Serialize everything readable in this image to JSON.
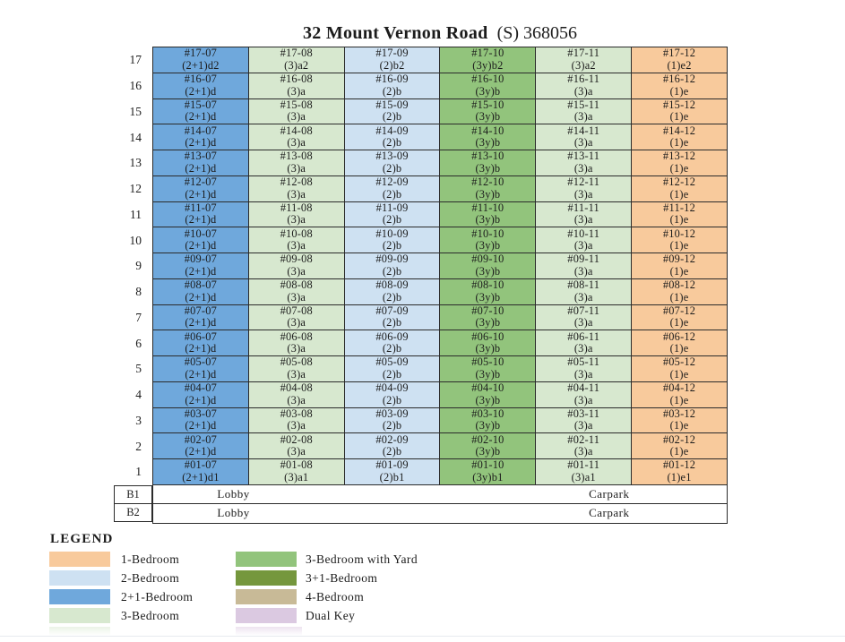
{
  "title": {
    "building": "32 Mount Vernon Road",
    "postal": "(S) 368056"
  },
  "palette": {
    "1-Bedroom": "#F8CA9C",
    "2-Bedroom": "#CEE1F2",
    "2+1-Bedroom": "#6FA8DC",
    "3-Bedroom": "#D7E8CF",
    "3-Bedroom with Yard": "#92C47C",
    "3+1-Bedroom": "#75973D",
    "4-Bedroom": "#C8BA97",
    "Dual Key": "#DBC9E1"
  },
  "building": {
    "stacks": [
      {
        "no": "07",
        "category": "2+1-Bedroom"
      },
      {
        "no": "08",
        "category": "3-Bedroom"
      },
      {
        "no": "09",
        "category": "2-Bedroom"
      },
      {
        "no": "10",
        "category": "3-Bedroom with Yard"
      },
      {
        "no": "11",
        "category": "3-Bedroom"
      },
      {
        "no": "12",
        "category": "1-Bedroom"
      }
    ],
    "floors": [
      {
        "label": "17",
        "units": [
          {
            "id": "#17-07",
            "type": "(2+1)d2"
          },
          {
            "id": "#17-08",
            "type": "(3)a2"
          },
          {
            "id": "#17-09",
            "type": "(2)b2"
          },
          {
            "id": "#17-10",
            "type": "(3y)b2"
          },
          {
            "id": "#17-11",
            "type": "(3)a2"
          },
          {
            "id": "#17-12",
            "type": "(1)e2"
          }
        ]
      },
      {
        "label": "16",
        "units": [
          {
            "id": "#16-07",
            "type": "(2+1)d"
          },
          {
            "id": "#16-08",
            "type": "(3)a"
          },
          {
            "id": "#16-09",
            "type": "(2)b"
          },
          {
            "id": "#16-10",
            "type": "(3y)b"
          },
          {
            "id": "#16-11",
            "type": "(3)a"
          },
          {
            "id": "#16-12",
            "type": "(1)e"
          }
        ]
      },
      {
        "label": "15",
        "units": [
          {
            "id": "#15-07",
            "type": "(2+1)d"
          },
          {
            "id": "#15-08",
            "type": "(3)a"
          },
          {
            "id": "#15-09",
            "type": "(2)b"
          },
          {
            "id": "#15-10",
            "type": "(3y)b"
          },
          {
            "id": "#15-11",
            "type": "(3)a"
          },
          {
            "id": "#15-12",
            "type": "(1)e"
          }
        ]
      },
      {
        "label": "14",
        "units": [
          {
            "id": "#14-07",
            "type": "(2+1)d"
          },
          {
            "id": "#14-08",
            "type": "(3)a"
          },
          {
            "id": "#14-09",
            "type": "(2)b"
          },
          {
            "id": "#14-10",
            "type": "(3y)b"
          },
          {
            "id": "#14-11",
            "type": "(3)a"
          },
          {
            "id": "#14-12",
            "type": "(1)e"
          }
        ]
      },
      {
        "label": "13",
        "units": [
          {
            "id": "#13-07",
            "type": "(2+1)d"
          },
          {
            "id": "#13-08",
            "type": "(3)a"
          },
          {
            "id": "#13-09",
            "type": "(2)b"
          },
          {
            "id": "#13-10",
            "type": "(3y)b"
          },
          {
            "id": "#13-11",
            "type": "(3)a"
          },
          {
            "id": "#13-12",
            "type": "(1)e"
          }
        ]
      },
      {
        "label": "12",
        "units": [
          {
            "id": "#12-07",
            "type": "(2+1)d"
          },
          {
            "id": "#12-08",
            "type": "(3)a"
          },
          {
            "id": "#12-09",
            "type": "(2)b"
          },
          {
            "id": "#12-10",
            "type": "(3y)b"
          },
          {
            "id": "#12-11",
            "type": "(3)a"
          },
          {
            "id": "#12-12",
            "type": "(1)e"
          }
        ]
      },
      {
        "label": "11",
        "units": [
          {
            "id": "#11-07",
            "type": "(2+1)d"
          },
          {
            "id": "#11-08",
            "type": "(3)a"
          },
          {
            "id": "#11-09",
            "type": "(2)b"
          },
          {
            "id": "#11-10",
            "type": "(3y)b"
          },
          {
            "id": "#11-11",
            "type": "(3)a"
          },
          {
            "id": "#11-12",
            "type": "(1)e"
          }
        ]
      },
      {
        "label": "10",
        "units": [
          {
            "id": "#10-07",
            "type": "(2+1)d"
          },
          {
            "id": "#10-08",
            "type": "(3)a"
          },
          {
            "id": "#10-09",
            "type": "(2)b"
          },
          {
            "id": "#10-10",
            "type": "(3y)b"
          },
          {
            "id": "#10-11",
            "type": "(3)a"
          },
          {
            "id": "#10-12",
            "type": "(1)e"
          }
        ]
      },
      {
        "label": "9",
        "units": [
          {
            "id": "#09-07",
            "type": "(2+1)d"
          },
          {
            "id": "#09-08",
            "type": "(3)a"
          },
          {
            "id": "#09-09",
            "type": "(2)b"
          },
          {
            "id": "#09-10",
            "type": "(3y)b"
          },
          {
            "id": "#09-11",
            "type": "(3)a"
          },
          {
            "id": "#09-12",
            "type": "(1)e"
          }
        ]
      },
      {
        "label": "8",
        "units": [
          {
            "id": "#08-07",
            "type": "(2+1)d"
          },
          {
            "id": "#08-08",
            "type": "(3)a"
          },
          {
            "id": "#08-09",
            "type": "(2)b"
          },
          {
            "id": "#08-10",
            "type": "(3y)b"
          },
          {
            "id": "#08-11",
            "type": "(3)a"
          },
          {
            "id": "#08-12",
            "type": "(1)e"
          }
        ]
      },
      {
        "label": "7",
        "units": [
          {
            "id": "#07-07",
            "type": "(2+1)d"
          },
          {
            "id": "#07-08",
            "type": "(3)a"
          },
          {
            "id": "#07-09",
            "type": "(2)b"
          },
          {
            "id": "#07-10",
            "type": "(3y)b"
          },
          {
            "id": "#07-11",
            "type": "(3)a"
          },
          {
            "id": "#07-12",
            "type": "(1)e"
          }
        ]
      },
      {
        "label": "6",
        "units": [
          {
            "id": "#06-07",
            "type": "(2+1)d"
          },
          {
            "id": "#06-08",
            "type": "(3)a"
          },
          {
            "id": "#06-09",
            "type": "(2)b"
          },
          {
            "id": "#06-10",
            "type": "(3y)b"
          },
          {
            "id": "#06-11",
            "type": "(3)a"
          },
          {
            "id": "#06-12",
            "type": "(1)e"
          }
        ]
      },
      {
        "label": "5",
        "units": [
          {
            "id": "#05-07",
            "type": "(2+1)d"
          },
          {
            "id": "#05-08",
            "type": "(3)a"
          },
          {
            "id": "#05-09",
            "type": "(2)b"
          },
          {
            "id": "#05-10",
            "type": "(3y)b"
          },
          {
            "id": "#05-11",
            "type": "(3)a"
          },
          {
            "id": "#05-12",
            "type": "(1)e"
          }
        ]
      },
      {
        "label": "4",
        "units": [
          {
            "id": "#04-07",
            "type": "(2+1)d"
          },
          {
            "id": "#04-08",
            "type": "(3)a"
          },
          {
            "id": "#04-09",
            "type": "(2)b"
          },
          {
            "id": "#04-10",
            "type": "(3y)b"
          },
          {
            "id": "#04-11",
            "type": "(3)a"
          },
          {
            "id": "#04-12",
            "type": "(1)e"
          }
        ]
      },
      {
        "label": "3",
        "units": [
          {
            "id": "#03-07",
            "type": "(2+1)d"
          },
          {
            "id": "#03-08",
            "type": "(3)a"
          },
          {
            "id": "#03-09",
            "type": "(2)b"
          },
          {
            "id": "#03-10",
            "type": "(3y)b"
          },
          {
            "id": "#03-11",
            "type": "(3)a"
          },
          {
            "id": "#03-12",
            "type": "(1)e"
          }
        ]
      },
      {
        "label": "2",
        "units": [
          {
            "id": "#02-07",
            "type": "(2+1)d"
          },
          {
            "id": "#02-08",
            "type": "(3)a"
          },
          {
            "id": "#02-09",
            "type": "(2)b"
          },
          {
            "id": "#02-10",
            "type": "(3y)b"
          },
          {
            "id": "#02-11",
            "type": "(3)a"
          },
          {
            "id": "#02-12",
            "type": "(1)e"
          }
        ]
      },
      {
        "label": "1",
        "units": [
          {
            "id": "#01-07",
            "type": "(2+1)d1"
          },
          {
            "id": "#01-08",
            "type": "(3)a1"
          },
          {
            "id": "#01-09",
            "type": "(2)b1"
          },
          {
            "id": "#01-10",
            "type": "(3y)b1"
          },
          {
            "id": "#01-11",
            "type": "(3)a1"
          },
          {
            "id": "#01-12",
            "type": "(1)e1"
          }
        ]
      }
    ],
    "basements": [
      {
        "label": "B1",
        "lobby": "Lobby",
        "carpark": "Carpark"
      },
      {
        "label": "B2",
        "lobby": "Lobby",
        "carpark": "Carpark"
      }
    ]
  },
  "legend": {
    "heading": "LEGEND",
    "items": [
      {
        "label": "1-Bedroom",
        "color": "#F8CA9C"
      },
      {
        "label": "2-Bedroom",
        "color": "#CEE1F2"
      },
      {
        "label": "2+1-Bedroom",
        "color": "#6FA8DC"
      },
      {
        "label": "3-Bedroom",
        "color": "#D7E8CF"
      },
      {
        "label": "3-Bedroom with Yard",
        "color": "#92C47C"
      },
      {
        "label": "3+1-Bedroom",
        "color": "#75973D"
      },
      {
        "label": "4-Bedroom",
        "color": "#C8BA97"
      },
      {
        "label": "Dual Key",
        "color": "#DBC9E1"
      }
    ]
  }
}
